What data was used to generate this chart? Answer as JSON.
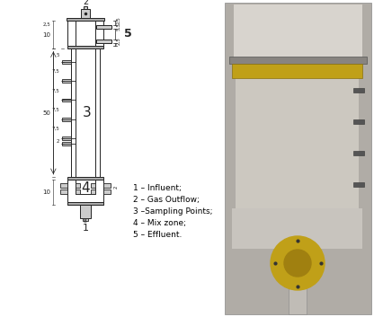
{
  "bg_color": "#ffffff",
  "line_color": "#222222",
  "legend": [
    "1 – Influent;",
    "2 – Gas Outflow;",
    "3 –Sampling Points;",
    "4 – Mix zone;",
    "5 – Effluent."
  ],
  "label3": "3",
  "label4": "4",
  "label1": "1",
  "label2": "2",
  "label5": "5",
  "photo_bg": "#b8b4ae",
  "photo_top_light": "#dedad4",
  "photo_yellow1": "#c8a820",
  "photo_mid": "#a09890",
  "photo_bottom_bg": "#c0bcb6"
}
